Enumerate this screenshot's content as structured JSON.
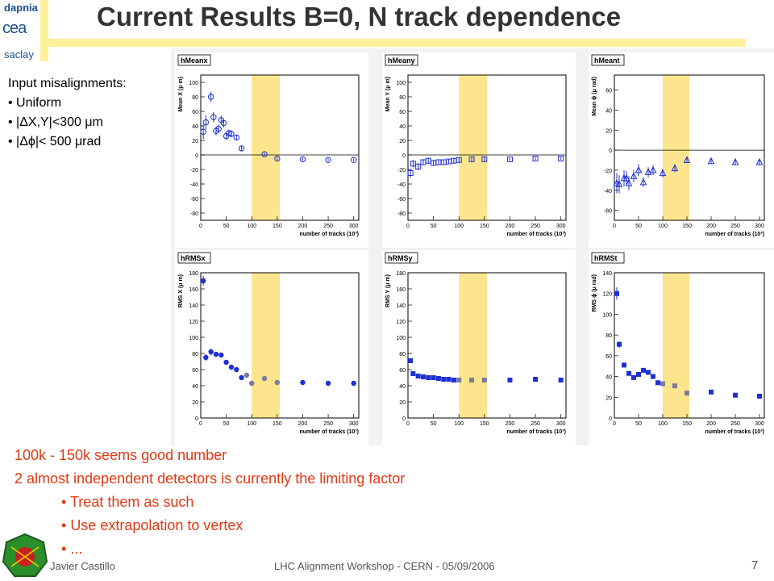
{
  "logo": {
    "top": "dapnia",
    "mid": "cea",
    "bottom": "saclay"
  },
  "title": "Current Results B=0, N track dependence",
  "input_misalignments": {
    "heading": "Input misalignments:",
    "items": [
      "Uniform",
      "|ΔX,Y|<300 μm",
      "|Δϕ|< 500 μrad"
    ]
  },
  "notes": {
    "lines": [
      "100k - 150k seems good number",
      "2 almost independent detectors is currently the limiting factor"
    ],
    "bullets": [
      "Treat them as such",
      "Use extrapolation to vertex",
      "..."
    ]
  },
  "footer": {
    "author": "Javier Castillo",
    "event": "LHC Alignment Workshop - CERN - 05/09/2006",
    "page": "7"
  },
  "colors": {
    "marker": "#1f2fd6",
    "grey_marker": "#7a7a9a",
    "band": "#fce58c",
    "title": "#333333",
    "notes": "#e03a14"
  },
  "chart_data": [
    {
      "type": "scatter",
      "title": "hMeanx",
      "ylabel": "Mean X (μ m)",
      "xlabel": "number of tracks (10³)",
      "ylim": [
        -90,
        110
      ],
      "yticks": [
        -80,
        -60,
        -40,
        -20,
        0,
        20,
        40,
        60,
        80,
        100
      ],
      "xlim": [
        0,
        310
      ],
      "xticks": [
        0,
        50,
        100,
        150,
        200,
        250,
        300
      ],
      "band": [
        100,
        155
      ],
      "marker": "circle-open",
      "series": [
        {
          "x": [
            5,
            10,
            20,
            25,
            30,
            35,
            40,
            45,
            50,
            55,
            60,
            70,
            80,
            125,
            150,
            200,
            250,
            300
          ],
          "y": [
            32,
            45,
            80,
            52,
            33,
            36,
            48,
            44,
            26,
            30,
            29,
            24,
            9,
            1,
            -5,
            -6,
            -7,
            -7
          ],
          "err": [
            10,
            10,
            7,
            7,
            6,
            6,
            6,
            6,
            5,
            5,
            5,
            4,
            3,
            2,
            2,
            2,
            2,
            2
          ]
        }
      ]
    },
    {
      "type": "scatter",
      "title": "hMeany",
      "ylabel": "Mean Y (μ m)",
      "xlabel": "number of tracks (10³)",
      "ylim": [
        -90,
        110
      ],
      "yticks": [
        -80,
        -60,
        -40,
        -20,
        0,
        20,
        40,
        60,
        80,
        100
      ],
      "xlim": [
        0,
        310
      ],
      "xticks": [
        0,
        50,
        100,
        150,
        200,
        250,
        300
      ],
      "band": [
        100,
        155
      ],
      "marker": "square-open",
      "series": [
        {
          "x": [
            5,
            10,
            20,
            30,
            40,
            50,
            60,
            70,
            80,
            90,
            100,
            125,
            150,
            200,
            250,
            300
          ],
          "y": [
            -25,
            -12,
            -16,
            -10,
            -8,
            -11,
            -10,
            -10,
            -9,
            -8,
            -7,
            -6,
            -6,
            -6,
            -5,
            -5
          ],
          "err": [
            6,
            5,
            5,
            4,
            4,
            4,
            3,
            3,
            3,
            3,
            3,
            3,
            3,
            2,
            2,
            2
          ]
        }
      ]
    },
    {
      "type": "scatter",
      "title": "hMeant",
      "ylabel": "Mean ϕ (μ rad)",
      "xlabel": "number of tracks (10³)",
      "ylim": [
        -70,
        75
      ],
      "yticks": [
        -60,
        -40,
        -20,
        0,
        20,
        40,
        60
      ],
      "xlim": [
        0,
        310
      ],
      "xticks": [
        0,
        50,
        100,
        150,
        200,
        250,
        300
      ],
      "band": [
        100,
        155
      ],
      "marker": "triangle-open",
      "series": [
        {
          "x": [
            5,
            10,
            20,
            25,
            30,
            40,
            50,
            60,
            70,
            80,
            100,
            125,
            150,
            200,
            250,
            300
          ],
          "y": [
            -33,
            -34,
            -28,
            -28,
            -33,
            -26,
            -20,
            -32,
            -22,
            -20,
            -23,
            -18,
            -10,
            -11,
            -12,
            -12
          ],
          "err": [
            10,
            9,
            8,
            7,
            7,
            6,
            6,
            5,
            5,
            5,
            4,
            4,
            3,
            3,
            3,
            3
          ]
        }
      ]
    },
    {
      "type": "scatter",
      "title": "hRMSx",
      "ylabel": "RMS X (μ m)",
      "xlabel": "number of tracks (10³)",
      "ylim": [
        0,
        180
      ],
      "yticks": [
        0,
        20,
        40,
        60,
        80,
        100,
        120,
        140,
        160,
        180
      ],
      "xlim": [
        0,
        310
      ],
      "xticks": [
        0,
        50,
        100,
        150,
        200,
        250,
        300
      ],
      "band": [
        100,
        155
      ],
      "marker": "circle-filled",
      "series": [
        {
          "x": [
            5,
            10,
            20,
            30,
            40,
            50,
            60,
            70,
            80,
            90,
            100,
            125,
            150,
            200,
            250,
            300
          ],
          "y": [
            170,
            75,
            82,
            79,
            78,
            69,
            63,
            60,
            50,
            53,
            43,
            49,
            44,
            44,
            43,
            43
          ],
          "err": [
            6,
            4,
            4,
            3,
            3,
            3,
            3,
            3,
            2,
            2,
            2,
            2,
            1,
            1,
            1,
            1
          ],
          "grey_from_x": 90
        }
      ]
    },
    {
      "type": "scatter",
      "title": "hRMSy",
      "ylabel": "RMS Y (μ m)",
      "xlabel": "number of tracks (10³)",
      "ylim": [
        0,
        180
      ],
      "yticks": [
        0,
        20,
        40,
        60,
        80,
        100,
        120,
        140,
        160,
        180
      ],
      "xlim": [
        0,
        310
      ],
      "xticks": [
        0,
        50,
        100,
        150,
        200,
        250,
        300
      ],
      "band": [
        100,
        155
      ],
      "marker": "square-filled",
      "series": [
        {
          "x": [
            5,
            10,
            20,
            30,
            40,
            50,
            60,
            70,
            80,
            90,
            100,
            125,
            150,
            200,
            250,
            300
          ],
          "y": [
            71,
            55,
            52,
            51,
            50,
            50,
            49,
            48,
            48,
            47,
            47,
            47,
            47,
            47,
            48,
            47
          ],
          "err": [
            3,
            2,
            2,
            2,
            2,
            2,
            1,
            1,
            1,
            1,
            1,
            1,
            1,
            1,
            1,
            1
          ],
          "grey_from_x": 95
        }
      ]
    },
    {
      "type": "scatter",
      "title": "hRMSt",
      "ylabel": "RMS ϕ (μ rad)",
      "xlabel": "number of tracks (10³)",
      "ylim": [
        0,
        140
      ],
      "yticks": [
        0,
        20,
        40,
        60,
        80,
        100,
        120,
        140
      ],
      "xlim": [
        0,
        310
      ],
      "xticks": [
        0,
        50,
        100,
        150,
        200,
        250,
        300
      ],
      "band": [
        100,
        155
      ],
      "marker": "square-filled",
      "series": [
        {
          "x": [
            5,
            10,
            20,
            30,
            40,
            50,
            60,
            70,
            80,
            90,
            100,
            125,
            150,
            200,
            250,
            300
          ],
          "y": [
            120,
            71,
            51,
            43,
            39,
            42,
            46,
            44,
            40,
            34,
            33,
            31,
            24,
            25,
            22,
            21
          ],
          "err": [
            6,
            3,
            2,
            2,
            2,
            2,
            2,
            2,
            1,
            1,
            1,
            1,
            1,
            1,
            1,
            1
          ],
          "grey_from_x": 95
        }
      ]
    }
  ]
}
